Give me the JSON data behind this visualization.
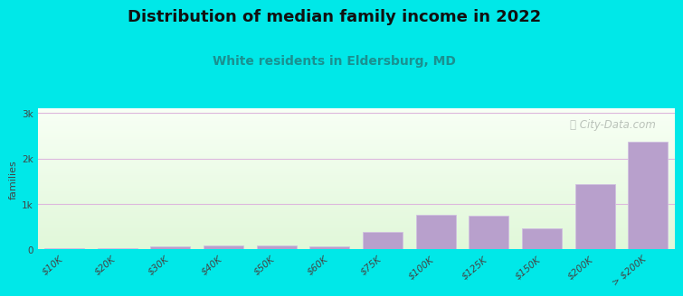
{
  "title": "Distribution of median family income in 2022",
  "subtitle": "White residents in Eldersburg, MD",
  "watermark": "ⓘ City-Data.com",
  "ylabel": "families",
  "categories": [
    "$10K",
    "$20K",
    "$30K",
    "$40K",
    "$50K",
    "$60K",
    "$75K",
    "$100K",
    "$125K",
    "$150K",
    "$200K",
    "> $200K"
  ],
  "values": [
    30,
    20,
    70,
    90,
    80,
    60,
    390,
    770,
    750,
    470,
    1430,
    2380
  ],
  "bar_color": "#b8a0cc",
  "bar_edge_color": "#d0c0e0",
  "background_color": "#00e8e8",
  "grid_color": "#ddb8dd",
  "title_fontsize": 13,
  "subtitle_fontsize": 10,
  "subtitle_color": "#1a9090",
  "ylabel_fontsize": 8,
  "tick_fontsize": 7.5,
  "ytick_labels": [
    "0",
    "1k",
    "2k",
    "3k"
  ],
  "ytick_values": [
    0,
    1000,
    2000,
    3000
  ],
  "ylim": [
    0,
    3100
  ],
  "watermark_color": "#b0b8b0",
  "watermark_fontsize": 8.5
}
